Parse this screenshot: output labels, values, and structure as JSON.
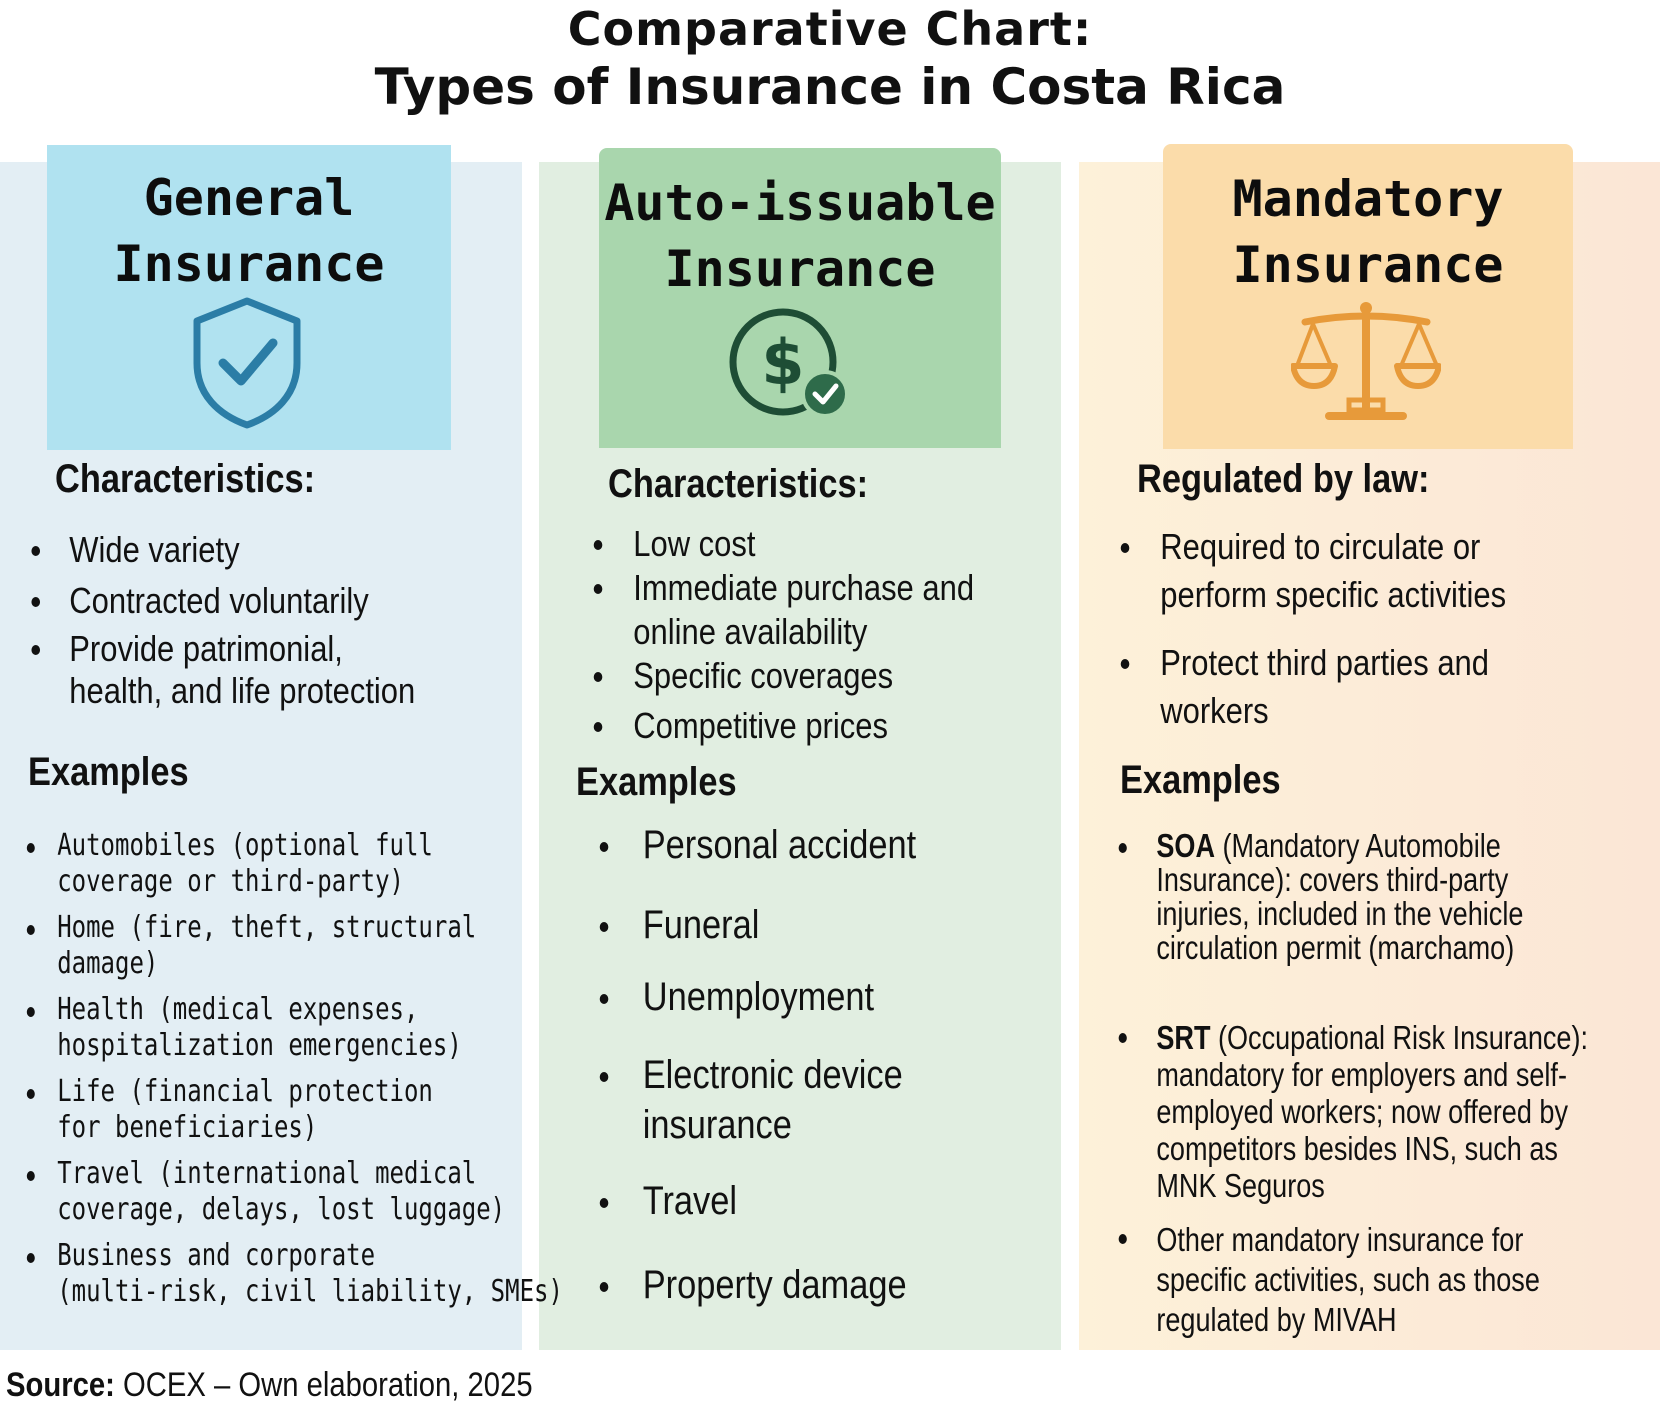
{
  "title": {
    "line1": "Comparative Chart:",
    "line2": "Types of Insurance in Costa Rica"
  },
  "columns": [
    {
      "title_line1": "General",
      "title_line2": "Insurance",
      "icon": "shield-check-icon",
      "color": "#b0e2f0",
      "section1_heading": "Characteristics:",
      "section1_items": [
        "Wide variety",
        "Contracted voluntarily",
        "Provide patrimonial,",
        "health, and life protection"
      ],
      "examples_heading": "Examples",
      "examples": [
        "Automobiles (optional full",
        "coverage or third-party)",
        "Home (fire, theft, structural",
        "damage)",
        "Health (medical expenses,",
        "hospitalization emergencies)",
        "Life (financial protection",
        "for beneficiaries)",
        "Travel (international medical",
        "coverage, delays, lost luggage)",
        "Business and corporate",
        "(multi-risk, civil liability, SMEs)"
      ]
    },
    {
      "title_line1": "Auto-issuable",
      "title_line2": "Insurance",
      "icon": "dollar-check-icon",
      "color": "#a9d6ad",
      "section1_heading": "Characteristics:",
      "section1_items": [
        "Low cost",
        "Immediate purchase and",
        "online availability",
        "Specific coverages",
        "Competitive prices"
      ],
      "examples_heading": "Examples",
      "examples": [
        "Personal accident",
        "Funeral",
        "Unemployment",
        "Electronic device",
        "insurance",
        "Travel",
        "Property damage"
      ]
    },
    {
      "title_line1": "Mandatory",
      "title_line2": "Insurance",
      "icon": "scales-icon",
      "color": "#fbdcaa",
      "section1_heading": "Regulated by law:",
      "section1_items": [
        "Required to circulate or",
        "perform specific activities",
        "Protect third parties and",
        "workers"
      ],
      "examples_heading": "Examples",
      "examples": [
        {
          "bold": "SOA",
          "text": " (Mandatory Automobile"
        },
        "Insurance): covers third-party",
        "injuries, included in the vehicle",
        "circulation permit (marchamo)",
        {
          "bold": "SRT",
          "text": " (Occupational Risk Insurance):"
        },
        "mandatory for employers and self-",
        "employed workers; now offered by",
        "competitors besides INS, such as",
        "MNK Seguros",
        "Other mandatory insurance for",
        "specific activities, such as those",
        "regulated by MIVAH"
      ]
    }
  ],
  "source": {
    "label": "Source:",
    "text": " OCEX – Own elaboration, 2025"
  }
}
